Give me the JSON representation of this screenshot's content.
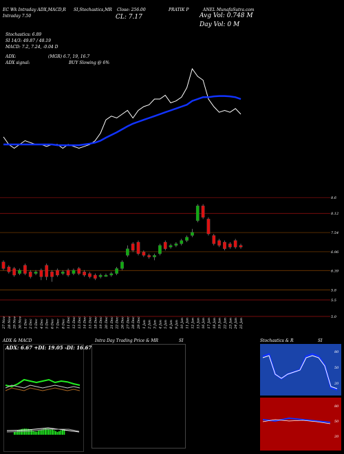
{
  "header": {
    "line1_a": "EC Wk Intraday ADX,MACD,R",
    "line1_b": "SI,Stochastics,MR",
    "line1_c": "Close: 256.00",
    "line1_d": "PRATIK P",
    "line1_e": "ANEL MunafaSutra.com",
    "line2_a": "Intraday 7.50",
    "line2_b": "CL: 7.17",
    "avg_vol": "Avg Vol: 0.748 M",
    "day_vol": "Day Vol: 0   M"
  },
  "indicators": {
    "stochastics": "Stochastics: 6.89",
    "rsi": "SI 14/3: 49.87 / 48.19",
    "macd": "MACD: 7.2, 7.24, -0.04  D",
    "adx": "ADX:",
    "mgr": "(MGR) 6.7,  19,  16.7",
    "adx_signal_label": "ADX  signal:",
    "buy_signal": "BUY Slowing @ 6%"
  },
  "price_levels": [
    "8.6",
    "8.12",
    "7.54",
    "6.96",
    "6.39",
    "5.8",
    "5.5",
    "5.0"
  ],
  "chart_data": {
    "type": "line",
    "xlabels": [
      "27 Nov",
      "28 Nov",
      "29 Nov",
      "30 Nov",
      "1 Dec",
      "2 Dec",
      "3 Dec",
      "4 Dec",
      "5 Dec",
      "6 Dec",
      "7 Dec",
      "8 Dec",
      "11 Dec",
      "12 Dec",
      "13 Dec",
      "14 Dec",
      "15 Dec",
      "18 Dec",
      "19 Dec",
      "20 Dec",
      "21 Dec",
      "22 Dec",
      "26 Dec",
      "27 Dec",
      "28 Dec",
      "29 Dec",
      "1 Jan",
      "2 Jan",
      "3 Jan",
      "4 Jan",
      "5 Jan",
      "8 Jan",
      "9 Jan",
      "10 Jan",
      "11 Jan",
      "12 Jan",
      "15 Jan",
      "16 Jan",
      "17 Jan",
      "18 Jan",
      "19 Jan",
      "22 Jan",
      "23 Jan",
      "24 Jan",
      "25 Jan"
    ],
    "series": [
      {
        "values": [
          6.5,
          6.3,
          6.2,
          6.3,
          6.4,
          6.35,
          6.3,
          6.3,
          6.25,
          6.3,
          6.3,
          6.2,
          6.3,
          6.25,
          6.2,
          6.25,
          6.3,
          6.4,
          6.6,
          6.95,
          7.05,
          7.0,
          7.1,
          7.2,
          7.0,
          7.2,
          7.3,
          7.35,
          7.5,
          7.5,
          7.6,
          7.4,
          7.45,
          7.55,
          7.8,
          8.3,
          8.1,
          8.0,
          7.5,
          7.3,
          7.15,
          7.2,
          7.15,
          7.25,
          7.1
        ]
      },
      {
        "values": [
          6.3,
          6.3,
          6.3,
          6.3,
          6.3,
          6.3,
          6.3,
          6.3,
          6.3,
          6.3,
          6.28,
          6.28,
          6.28,
          6.28,
          6.28,
          6.3,
          6.32,
          6.35,
          6.4,
          6.48,
          6.55,
          6.62,
          6.7,
          6.78,
          6.85,
          6.9,
          6.95,
          7.0,
          7.05,
          7.1,
          7.15,
          7.2,
          7.25,
          7.3,
          7.35,
          7.45,
          7.5,
          7.55,
          7.55,
          7.57,
          7.58,
          7.58,
          7.57,
          7.55,
          7.5
        ]
      }
    ],
    "candles": [
      {
        "o": 6.65,
        "c": 6.45,
        "h": 6.7,
        "l": 6.4
      },
      {
        "o": 6.5,
        "c": 6.35,
        "h": 6.55,
        "l": 6.3
      },
      {
        "o": 6.45,
        "c": 6.25,
        "h": 6.5,
        "l": 6.2
      },
      {
        "o": 6.3,
        "c": 6.4,
        "h": 6.45,
        "l": 6.25
      },
      {
        "o": 6.55,
        "c": 6.3,
        "h": 6.6,
        "l": 6.25
      },
      {
        "o": 6.35,
        "c": 6.2,
        "h": 6.4,
        "l": 6.15
      },
      {
        "o": 6.3,
        "c": 6.35,
        "h": 6.4,
        "l": 6.25
      },
      {
        "o": 6.4,
        "c": 6.2,
        "h": 6.45,
        "l": 6.1
      },
      {
        "o": 6.55,
        "c": 6.2,
        "h": 6.6,
        "l": 6.1
      },
      {
        "o": 6.35,
        "c": 6.2,
        "h": 6.4,
        "l": 6.05
      },
      {
        "o": 6.4,
        "c": 6.25,
        "h": 6.45,
        "l": 6.2
      },
      {
        "o": 6.3,
        "c": 6.35,
        "h": 6.4,
        "l": 6.25
      },
      {
        "o": 6.4,
        "c": 6.25,
        "h": 6.45,
        "l": 6.2
      },
      {
        "o": 6.3,
        "c": 6.4,
        "h": 6.45,
        "l": 6.25
      },
      {
        "o": 6.45,
        "c": 6.3,
        "h": 6.5,
        "l": 6.25
      },
      {
        "o": 6.35,
        "c": 6.25,
        "h": 6.4,
        "l": 6.2
      },
      {
        "o": 6.3,
        "c": 6.2,
        "h": 6.35,
        "l": 6.15
      },
      {
        "o": 6.25,
        "c": 6.15,
        "h": 6.3,
        "l": 6.1
      },
      {
        "o": 6.2,
        "c": 6.25,
        "h": 6.3,
        "l": 6.15
      },
      {
        "o": 6.25,
        "c": 6.25,
        "h": 6.3,
        "l": 6.2
      },
      {
        "o": 6.25,
        "c": 6.3,
        "h": 6.35,
        "l": 6.2
      },
      {
        "o": 6.3,
        "c": 6.45,
        "h": 6.5,
        "l": 6.25
      },
      {
        "o": 6.45,
        "c": 6.65,
        "h": 6.7,
        "l": 6.4
      },
      {
        "o": 6.85,
        "c": 7.05,
        "h": 7.15,
        "l": 6.8
      },
      {
        "o": 7.2,
        "c": 7.0,
        "h": 7.25,
        "l": 6.95
      },
      {
        "o": 7.25,
        "c": 6.9,
        "h": 7.3,
        "l": 6.85
      },
      {
        "o": 6.95,
        "c": 6.85,
        "h": 7.0,
        "l": 6.8
      },
      {
        "o": 6.85,
        "c": 6.8,
        "h": 6.9,
        "l": 6.75
      },
      {
        "o": 6.8,
        "c": 6.85,
        "h": 6.9,
        "l": 6.7
      },
      {
        "o": 6.9,
        "c": 7.15,
        "h": 7.2,
        "l": 6.85
      },
      {
        "o": 7.25,
        "c": 7.05,
        "h": 7.3,
        "l": 7.0
      },
      {
        "o": 7.1,
        "c": 7.15,
        "h": 7.2,
        "l": 7.05
      },
      {
        "o": 7.15,
        "c": 7.2,
        "h": 7.25,
        "l": 7.1
      },
      {
        "o": 7.2,
        "c": 7.3,
        "h": 7.35,
        "l": 7.15
      },
      {
        "o": 7.3,
        "c": 7.4,
        "h": 7.45,
        "l": 7.25
      },
      {
        "o": 7.45,
        "c": 7.55,
        "h": 7.65,
        "l": 7.4
      },
      {
        "o": 7.9,
        "c": 8.35,
        "h": 8.4,
        "l": 7.85
      },
      {
        "o": 8.35,
        "c": 8.0,
        "h": 8.4,
        "l": 7.95
      },
      {
        "o": 7.95,
        "c": 7.5,
        "h": 8.0,
        "l": 7.45
      },
      {
        "o": 7.45,
        "c": 7.2,
        "h": 7.5,
        "l": 7.15
      },
      {
        "o": 7.3,
        "c": 7.15,
        "h": 7.35,
        "l": 7.1
      },
      {
        "o": 7.25,
        "c": 7.05,
        "h": 7.3,
        "l": 7.0
      },
      {
        "o": 7.2,
        "c": 7.1,
        "h": 7.25,
        "l": 7.05
      },
      {
        "o": 7.3,
        "c": 7.1,
        "h": 7.35,
        "l": 7.05
      },
      {
        "o": 7.15,
        "c": 7.1,
        "h": 7.2,
        "l": 7.05
      }
    ]
  },
  "panels": {
    "adx_title": "ADX  & MACD",
    "adx_readout": "ADX: 6.67 +DI: 19.05 -DI: 16.67",
    "intraday_title": "Intra Day Trading Price  & MR",
    "intraday_si": "SI",
    "stoch_title": "Stochastics & R",
    "stoch_si": "SI",
    "stoch_levels": [
      "80",
      "50",
      "20"
    ],
    "rsi_levels": [
      "80",
      "50",
      "20"
    ]
  },
  "colors": {
    "up": "#11aa11",
    "down": "#dd1111",
    "ma": "#1133ff",
    "price": "#ffffff",
    "rsi_bg": "#aa0000"
  }
}
